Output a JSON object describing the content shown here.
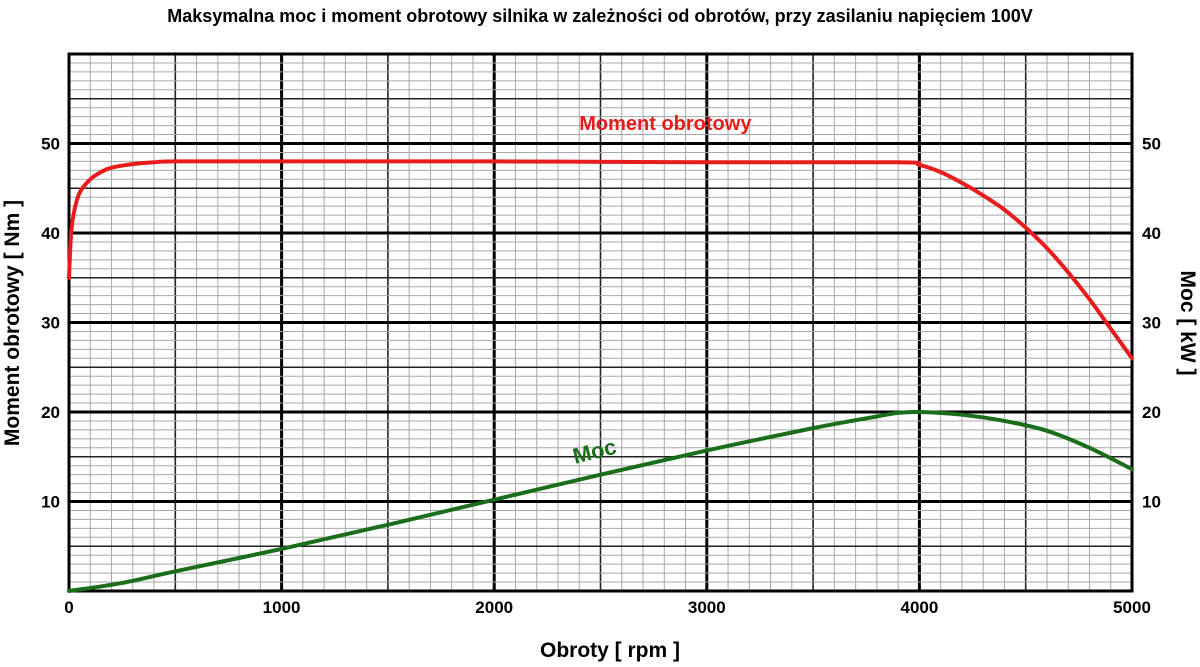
{
  "chart_data": {
    "type": "line",
    "title": "Maksymalna moc i moment obrotowy silnika w zależności od obrotów, przy zasilaniu napięciem 100V",
    "xlabel": "Obroty [ rpm ]",
    "ylabel": "Moment obrotowy [ Nm ]",
    "y2label": "Moc [ kW ]",
    "xlim": [
      0,
      5000
    ],
    "ylim": [
      0,
      60
    ],
    "y2lim": [
      0,
      60
    ],
    "grid": true,
    "x_ticks": [
      0,
      1000,
      2000,
      3000,
      4000,
      5000
    ],
    "y_ticks": [
      10,
      20,
      30,
      40,
      50
    ],
    "y2_ticks": [
      10,
      20,
      30,
      40,
      50
    ],
    "series": [
      {
        "name": "Moment obrotowy",
        "axis": "left",
        "color": "#e81c1c",
        "x": [
          0,
          10,
          25,
          50,
          100,
          150,
          200,
          300,
          400,
          500,
          1000,
          2000,
          3000,
          3900,
          4000,
          4100,
          4200,
          4300,
          4400,
          4500,
          4600,
          4700,
          4800,
          4900,
          5000
        ],
        "y": [
          35,
          40,
          42.5,
          44.5,
          46,
          46.8,
          47.3,
          47.7,
          47.9,
          48,
          48,
          48,
          47.9,
          47.9,
          47.6,
          46.8,
          45.6,
          44.2,
          42.6,
          40.6,
          38.3,
          35.6,
          32.6,
          29.3,
          26
        ]
      },
      {
        "name": "Moc",
        "axis": "right",
        "color": "#1a6e1a",
        "x": [
          0,
          250,
          500,
          1000,
          1500,
          2000,
          2500,
          3000,
          3500,
          3800,
          3900,
          4000,
          4200,
          4400,
          4600,
          4800,
          5000
        ],
        "y": [
          0,
          0.9,
          2.2,
          4.7,
          7.4,
          10.2,
          13,
          15.7,
          18.2,
          19.5,
          19.9,
          20,
          19.7,
          19,
          17.9,
          16,
          13.6
        ]
      }
    ],
    "annotations": [
      {
        "text": "Moment obrotowy",
        "x": 2400,
        "y": 51.5,
        "color": "#e81c1c"
      },
      {
        "text": "Moc",
        "x": 2380,
        "y": 14.2,
        "color": "#1a6e1a"
      }
    ]
  }
}
